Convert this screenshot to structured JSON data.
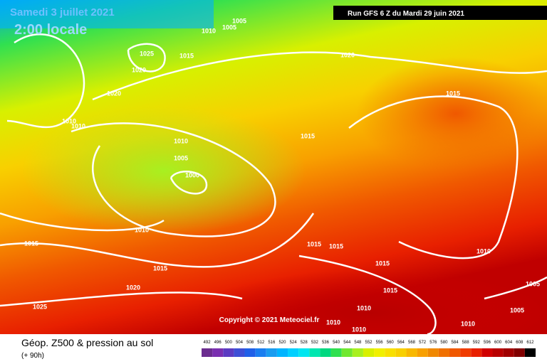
{
  "header": {
    "date": "Samedi 3 juillet 2021",
    "time": "2:00 locale",
    "run": "Run GFS 6 Z du Mardi 29 juin 2021"
  },
  "copyright": "Copyright © 2021 Meteociel.fr",
  "footer": {
    "title": "Géop. Z500 & pression au sol",
    "lead": "(+ 90h)"
  },
  "isobar_labels": [
    1005,
    1010,
    1005,
    1025,
    1015,
    1020,
    1020,
    1020,
    1015,
    1010,
    1010,
    1015,
    1010,
    1005,
    1000,
    1010,
    1015,
    1015,
    1015,
    1010,
    1015,
    1015,
    1015,
    1020,
    1005,
    1025,
    1010,
    1005,
    1010,
    1010,
    1010
  ],
  "legend": {
    "values": [
      492,
      496,
      500,
      504,
      508,
      512,
      516,
      520,
      524,
      528,
      532,
      536,
      540,
      544,
      548,
      552,
      556,
      560,
      564,
      568,
      572,
      576,
      580,
      584,
      588,
      592,
      596,
      600,
      604,
      608,
      612
    ],
    "colors": [
      "#6b2d8f",
      "#7a2fb0",
      "#5c3bc2",
      "#3e4fd6",
      "#2060e8",
      "#1a7ef0",
      "#1a9cf0",
      "#00b4ff",
      "#00d0ff",
      "#00e6f0",
      "#00e6b0",
      "#00d880",
      "#30e050",
      "#70e830",
      "#a8f020",
      "#d8f000",
      "#f0f000",
      "#f8e000",
      "#f8d000",
      "#f8b800",
      "#f8a000",
      "#f08800",
      "#f07000",
      "#f05800",
      "#f03c00",
      "#e82000",
      "#d00000",
      "#b80000",
      "#a00000",
      "#800000",
      "#000000"
    ]
  }
}
